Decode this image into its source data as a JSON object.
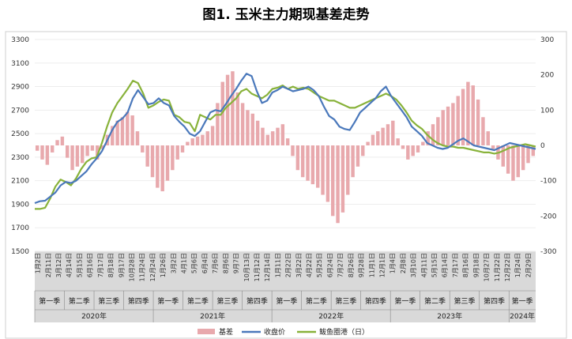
{
  "chart_data": {
    "type": "bar+line",
    "title": "图1. 玉米主力期现基差走势",
    "left_axis": {
      "ylim": [
        1500,
        3300
      ],
      "ticks": [
        "1500",
        "1700",
        "1900",
        "2100",
        "2300",
        "2500",
        "2700",
        "2900",
        "3100",
        "3300"
      ]
    },
    "right_axis": {
      "ylim": [
        -300,
        300
      ],
      "ticks": [
        "-300",
        "-200",
        "-100",
        "0",
        "100",
        "200",
        "300"
      ]
    },
    "x_tick_labels": [
      "1月2日",
      "2月11日",
      "3月12日",
      "4月14日",
      "5月15日",
      "6月16日",
      "7月17日",
      "8月18日",
      "9月17日",
      "10月28日",
      "11月24日",
      "12月24日",
      "1月26日",
      "3月2日",
      "4月1日",
      "5月6日",
      "6月4日",
      "7月6日",
      "8月6日",
      "9月7日",
      "10月13日",
      "11月12日",
      "12月14日",
      "1月11日",
      "2月22日",
      "3月22日",
      "4月22日",
      "5月25日",
      "6月24日",
      "7月27日",
      "8月26日",
      "9月28日",
      "11月1日",
      "12月1日",
      "1月4日",
      "2月8日",
      "3月10日",
      "4月11日",
      "5月15日",
      "6月14日",
      "7月17日",
      "8月16日",
      "9月18日",
      "10月27日",
      "11月22日",
      "12月22日",
      "1月24日",
      "2月29日"
    ],
    "quarters": [
      {
        "label": "第一季"
      },
      {
        "label": "第二季"
      },
      {
        "label": "第三季"
      },
      {
        "label": "第四季"
      },
      {
        "label": "第一季"
      },
      {
        "label": "第二季"
      },
      {
        "label": "第三季"
      },
      {
        "label": "第四季"
      },
      {
        "label": "第一季"
      },
      {
        "label": "第二季"
      },
      {
        "label": "第三季"
      },
      {
        "label": "第四季"
      },
      {
        "label": "第一季"
      },
      {
        "label": "第二季"
      },
      {
        "label": "第三季"
      },
      {
        "label": "第四季"
      },
      {
        "label": "第一季"
      }
    ],
    "years": [
      {
        "label": "2020年",
        "quarters": 4
      },
      {
        "label": "2021年",
        "quarters": 4
      },
      {
        "label": "2022年",
        "quarters": 4
      },
      {
        "label": "2023年",
        "quarters": 4
      },
      {
        "label": "2024年",
        "quarters": 1
      }
    ],
    "series": [
      {
        "name": "基差",
        "type": "bar",
        "axis": "right",
        "color": "#e8a9ad",
        "values": [
          -15,
          -40,
          -55,
          -20,
          15,
          25,
          -35,
          -70,
          -60,
          -50,
          -30,
          -15,
          -40,
          -10,
          30,
          55,
          70,
          80,
          95,
          85,
          40,
          -20,
          -60,
          -90,
          -120,
          -130,
          -100,
          -70,
          -40,
          -20,
          10,
          20,
          25,
          30,
          40,
          55,
          120,
          180,
          200,
          210,
          150,
          120,
          100,
          90,
          70,
          50,
          30,
          40,
          50,
          60,
          20,
          -30,
          -70,
          -90,
          -100,
          -110,
          -120,
          -140,
          -160,
          -200,
          -220,
          -190,
          -140,
          -90,
          -60,
          -30,
          10,
          30,
          40,
          50,
          60,
          70,
          20,
          -10,
          -40,
          -30,
          -20,
          10,
          40,
          60,
          80,
          100,
          110,
          120,
          140,
          160,
          180,
          170,
          130,
          80,
          40,
          -10,
          -40,
          -60,
          -80,
          -100,
          -90,
          -70,
          -50,
          -30
        ]
      },
      {
        "name": "收盘价",
        "type": "line",
        "axis": "left",
        "color": "#4a78bb",
        "values": [
          1910,
          1925,
          1930,
          1965,
          2000,
          2060,
          2090,
          2080,
          2100,
          2140,
          2180,
          2240,
          2290,
          2350,
          2440,
          2530,
          2600,
          2630,
          2680,
          2800,
          2870,
          2810,
          2750,
          2760,
          2800,
          2760,
          2740,
          2650,
          2600,
          2560,
          2500,
          2480,
          2520,
          2600,
          2680,
          2700,
          2690,
          2750,
          2820,
          2880,
          2950,
          3010,
          2990,
          2860,
          2760,
          2780,
          2850,
          2870,
          2900,
          2880,
          2860,
          2870,
          2880,
          2900,
          2870,
          2820,
          2730,
          2650,
          2620,
          2560,
          2540,
          2530,
          2600,
          2680,
          2720,
          2760,
          2800,
          2860,
          2900,
          2820,
          2760,
          2700,
          2640,
          2560,
          2520,
          2480,
          2420,
          2400,
          2380,
          2370,
          2380,
          2410,
          2440,
          2460,
          2430,
          2400,
          2390,
          2380,
          2370,
          2360,
          2380,
          2400,
          2420,
          2410,
          2400,
          2390,
          2380,
          2370
        ]
      },
      {
        "name": "鲅鱼圈港（日）",
        "type": "line",
        "axis": "left",
        "color": "#88b23a",
        "values": [
          1860,
          1860,
          1870,
          1950,
          2050,
          2110,
          2090,
          2060,
          2120,
          2200,
          2260,
          2290,
          2300,
          2420,
          2560,
          2680,
          2760,
          2820,
          2880,
          2950,
          2930,
          2840,
          2720,
          2740,
          2770,
          2790,
          2780,
          2660,
          2640,
          2600,
          2590,
          2520,
          2660,
          2640,
          2620,
          2660,
          2660,
          2720,
          2760,
          2800,
          2860,
          2880,
          2840,
          2820,
          2800,
          2830,
          2880,
          2890,
          2910,
          2880,
          2900,
          2880,
          2890,
          2880,
          2850,
          2820,
          2800,
          2780,
          2780,
          2760,
          2740,
          2720,
          2720,
          2740,
          2760,
          2780,
          2800,
          2820,
          2840,
          2820,
          2790,
          2740,
          2680,
          2610,
          2570,
          2540,
          2490,
          2450,
          2420,
          2400,
          2390,
          2390,
          2380,
          2380,
          2370,
          2360,
          2350,
          2340,
          2340,
          2330,
          2340,
          2360,
          2380,
          2390,
          2400,
          2410,
          2400,
          2390
        ]
      }
    ],
    "legend_position": "bottom"
  }
}
